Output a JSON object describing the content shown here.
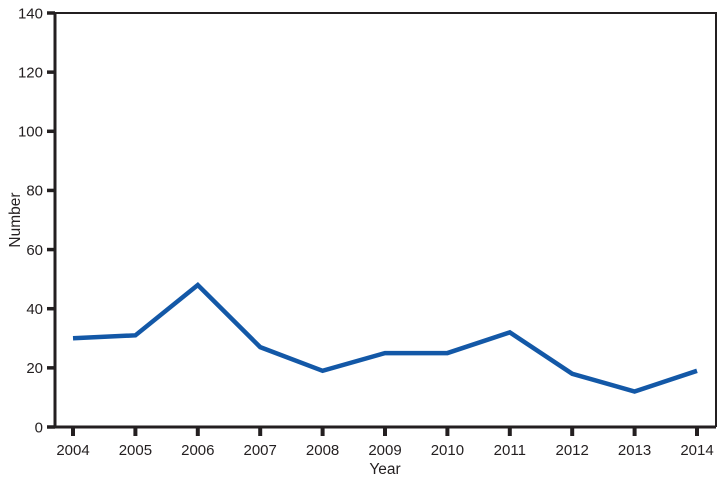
{
  "figure": {
    "background": "#ffffff"
  },
  "chart_data": {
    "type": "line",
    "xlabel": "Year",
    "ylabel": "Number",
    "categories": [
      "2004",
      "2005",
      "2006",
      "2007",
      "2008",
      "2009",
      "2010",
      "2011",
      "2012",
      "2013",
      "2014"
    ],
    "values": [
      30,
      31,
      48,
      27,
      19,
      25,
      25,
      32,
      18,
      12,
      19
    ],
    "ylim": [
      0,
      140
    ],
    "y_ticks": [
      0,
      20,
      40,
      60,
      80,
      100,
      120,
      140
    ],
    "grid": "off",
    "legend": "none",
    "line_color": "#1358A7",
    "axis_color": "#231F20"
  }
}
